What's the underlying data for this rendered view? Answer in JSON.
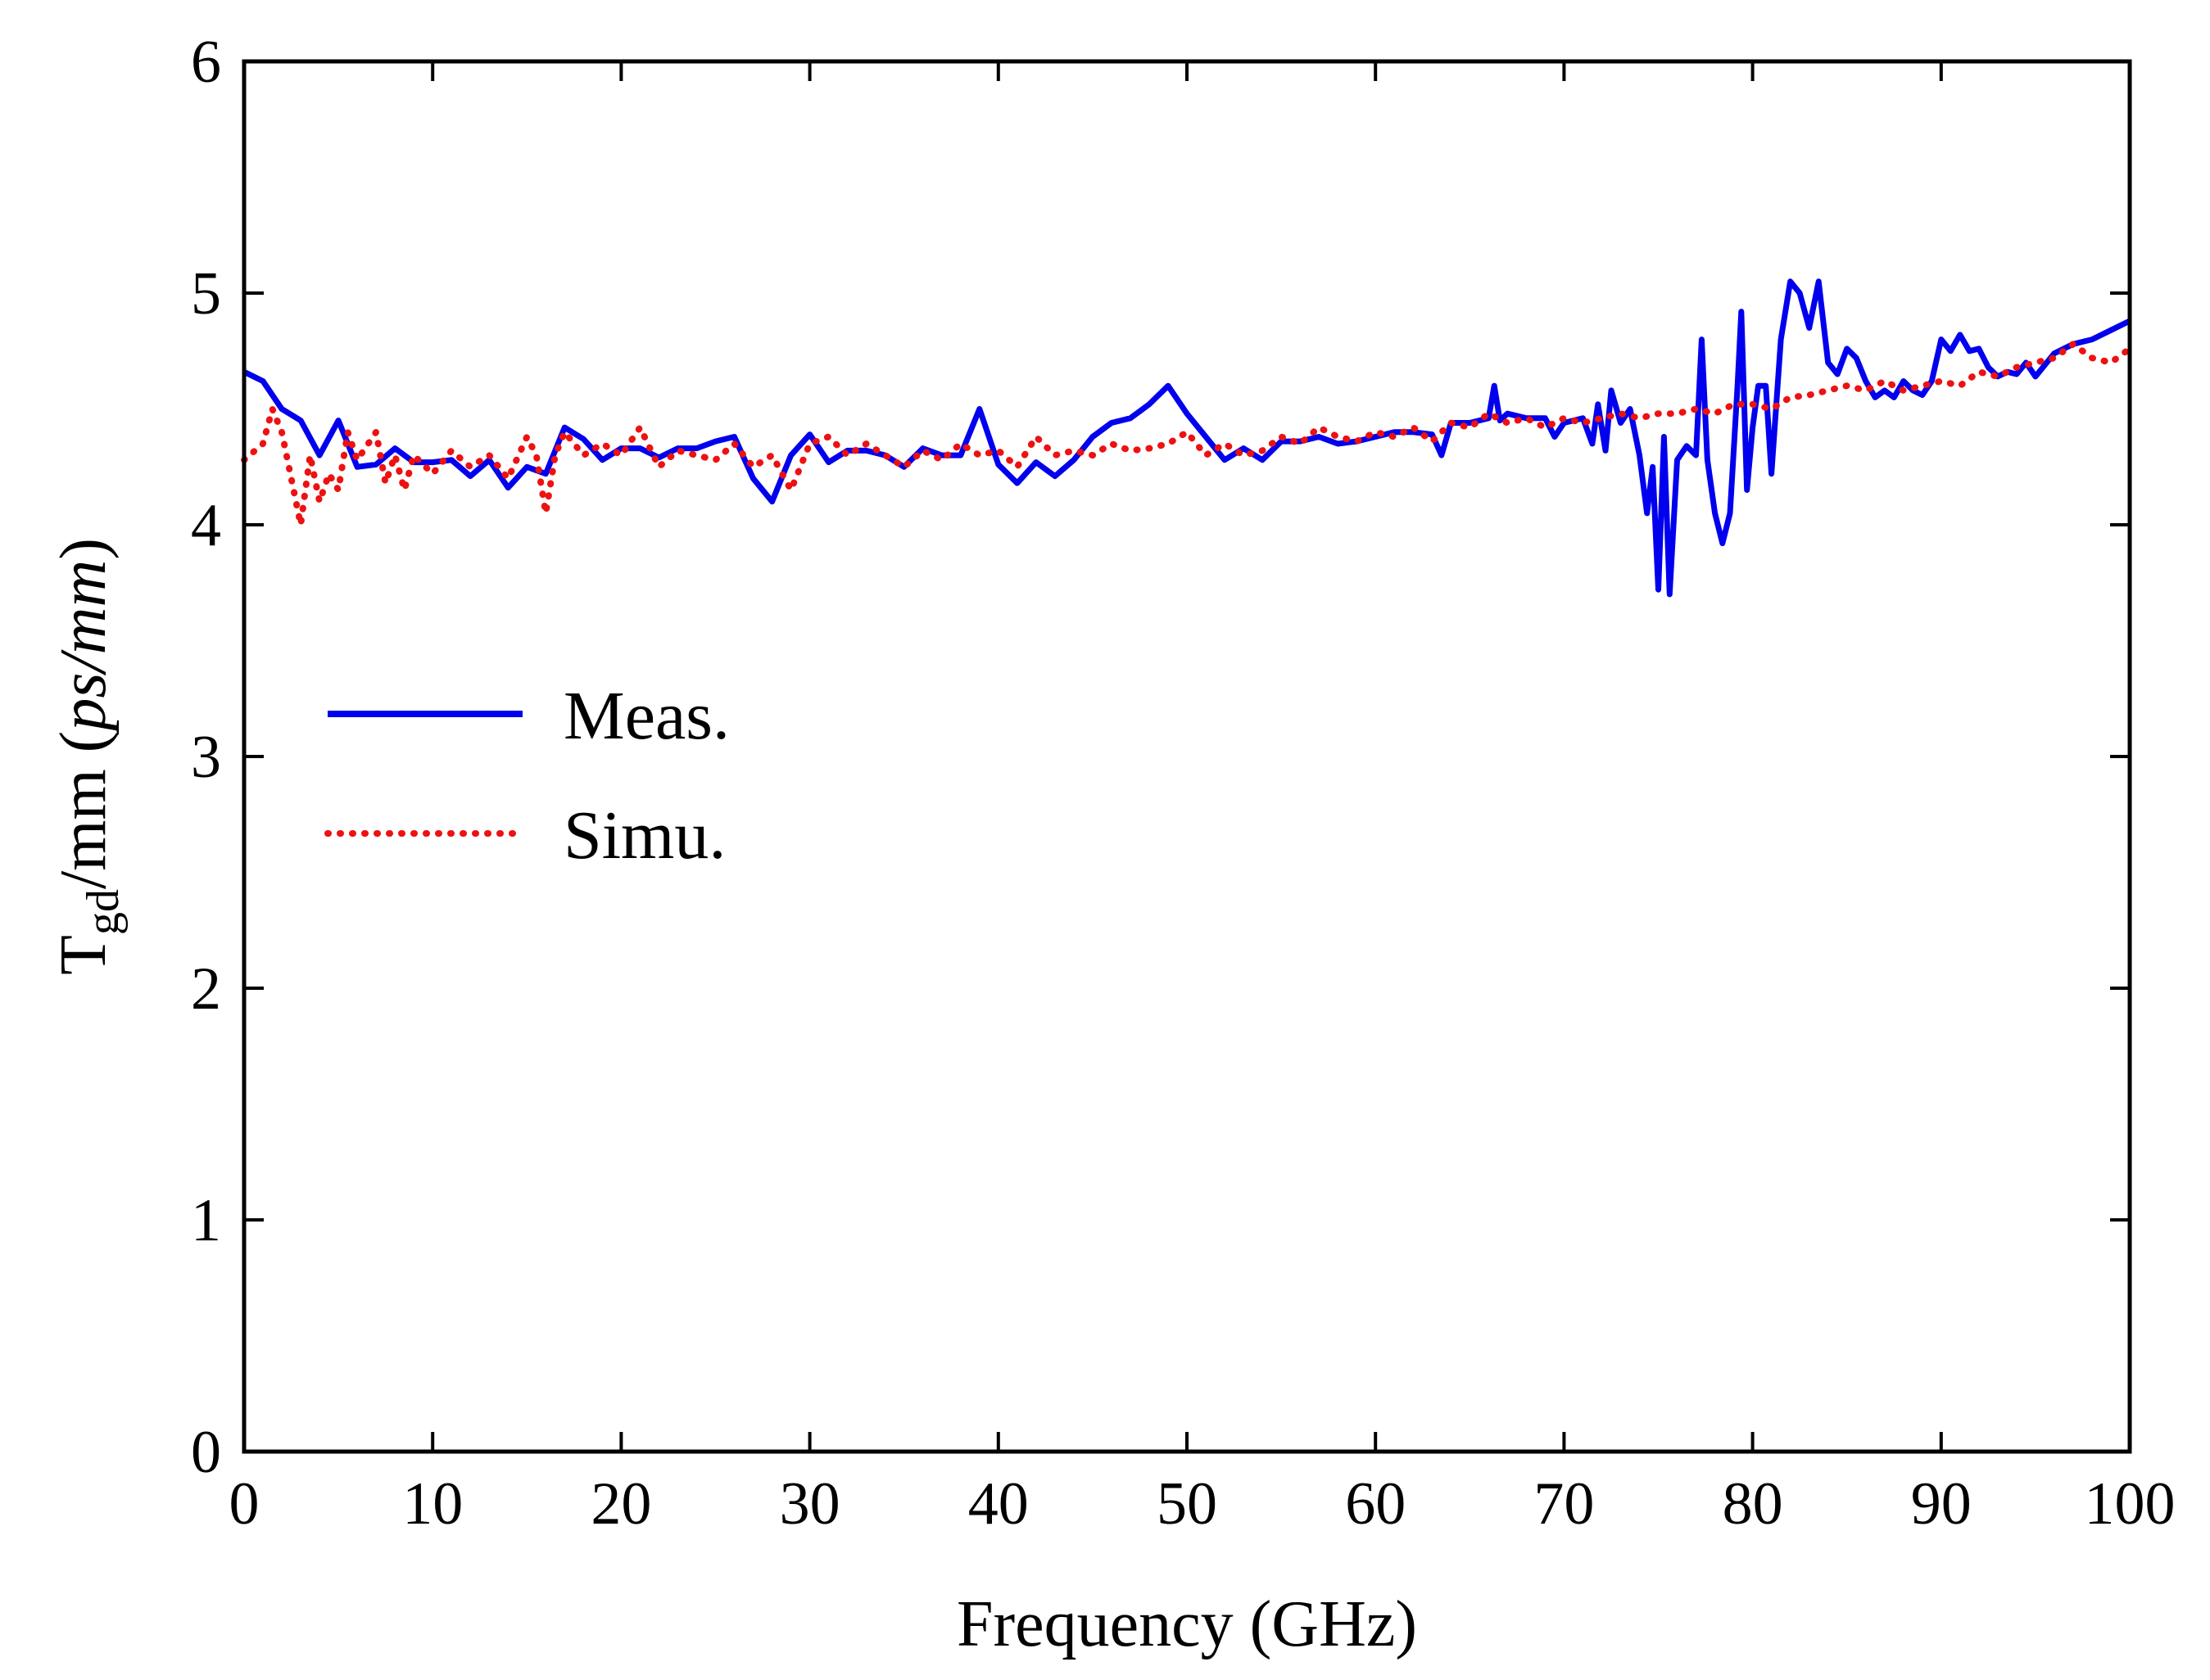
{
  "chart_data": {
    "type": "line",
    "title": "",
    "xlabel": "Frequency (GHz)",
    "ylabel": {
      "base": "T",
      "subscript": "gd",
      "middle": "/mm (",
      "italic": "ps/mm",
      "end": ")"
    },
    "xlim": [
      0,
      100
    ],
    "ylim": [
      0,
      6
    ],
    "xticks": [
      0,
      10,
      20,
      30,
      40,
      50,
      60,
      70,
      80,
      90,
      100
    ],
    "yticks": [
      0,
      1,
      2,
      3,
      4,
      5,
      6
    ],
    "grid": false,
    "legend_position": "center-left",
    "series": [
      {
        "name": "Meas.",
        "color": "#0000ee",
        "style": "solid",
        "points": [
          [
            0,
            4.66
          ],
          [
            1,
            4.62
          ],
          [
            2,
            4.5
          ],
          [
            3,
            4.45
          ],
          [
            4,
            4.3
          ],
          [
            5,
            4.45
          ],
          [
            6,
            4.25
          ],
          [
            7,
            4.26
          ],
          [
            8,
            4.33
          ],
          [
            9,
            4.27
          ],
          [
            10,
            4.27
          ],
          [
            11,
            4.28
          ],
          [
            12,
            4.21
          ],
          [
            13,
            4.28
          ],
          [
            14,
            4.16
          ],
          [
            15,
            4.25
          ],
          [
            16,
            4.22
          ],
          [
            17,
            4.42
          ],
          [
            18,
            4.37
          ],
          [
            19,
            4.28
          ],
          [
            20,
            4.33
          ],
          [
            21,
            4.33
          ],
          [
            22,
            4.29
          ],
          [
            23,
            4.33
          ],
          [
            24,
            4.33
          ],
          [
            25,
            4.36
          ],
          [
            26,
            4.38
          ],
          [
            27,
            4.2
          ],
          [
            28,
            4.1
          ],
          [
            29,
            4.3
          ],
          [
            30,
            4.39
          ],
          [
            31,
            4.27
          ],
          [
            32,
            4.32
          ],
          [
            33,
            4.32
          ],
          [
            34,
            4.3
          ],
          [
            35,
            4.25
          ],
          [
            36,
            4.33
          ],
          [
            37,
            4.3
          ],
          [
            38,
            4.3
          ],
          [
            39,
            4.5
          ],
          [
            40,
            4.26
          ],
          [
            41,
            4.18
          ],
          [
            42,
            4.27
          ],
          [
            43,
            4.21
          ],
          [
            44,
            4.28
          ],
          [
            45,
            4.38
          ],
          [
            46,
            4.44
          ],
          [
            47,
            4.46
          ],
          [
            48,
            4.52
          ],
          [
            49,
            4.6
          ],
          [
            50,
            4.48
          ],
          [
            51,
            4.38
          ],
          [
            52,
            4.28
          ],
          [
            53,
            4.33
          ],
          [
            54,
            4.28
          ],
          [
            55,
            4.36
          ],
          [
            56,
            4.36
          ],
          [
            57,
            4.38
          ],
          [
            58,
            4.35
          ],
          [
            59,
            4.36
          ],
          [
            60,
            4.38
          ],
          [
            61,
            4.4
          ],
          [
            62,
            4.4
          ],
          [
            63,
            4.39
          ],
          [
            63.5,
            4.3
          ],
          [
            64,
            4.44
          ],
          [
            65,
            4.44
          ],
          [
            66,
            4.46
          ],
          [
            66.3,
            4.6
          ],
          [
            66.6,
            4.45
          ],
          [
            67,
            4.48
          ],
          [
            68,
            4.46
          ],
          [
            69,
            4.46
          ],
          [
            69.5,
            4.38
          ],
          [
            70,
            4.44
          ],
          [
            71,
            4.46
          ],
          [
            71.5,
            4.35
          ],
          [
            71.8,
            4.52
          ],
          [
            72.2,
            4.32
          ],
          [
            72.5,
            4.58
          ],
          [
            73,
            4.44
          ],
          [
            73.5,
            4.5
          ],
          [
            74,
            4.3
          ],
          [
            74.4,
            4.05
          ],
          [
            74.7,
            4.25
          ],
          [
            75,
            3.72
          ],
          [
            75.3,
            4.38
          ],
          [
            75.6,
            3.7
          ],
          [
            76,
            4.28
          ],
          [
            76.5,
            4.34
          ],
          [
            77,
            4.3
          ],
          [
            77.3,
            4.8
          ],
          [
            77.6,
            4.28
          ],
          [
            78,
            4.05
          ],
          [
            78.4,
            3.92
          ],
          [
            78.8,
            4.05
          ],
          [
            79.2,
            4.6
          ],
          [
            79.4,
            4.92
          ],
          [
            79.7,
            4.15
          ],
          [
            80,
            4.42
          ],
          [
            80.3,
            4.6
          ],
          [
            80.7,
            4.6
          ],
          [
            81,
            4.22
          ],
          [
            81.5,
            4.8
          ],
          [
            82,
            5.05
          ],
          [
            82.5,
            5.0
          ],
          [
            83,
            4.85
          ],
          [
            83.5,
            5.05
          ],
          [
            84,
            4.7
          ],
          [
            84.5,
            4.65
          ],
          [
            85,
            4.76
          ],
          [
            85.5,
            4.72
          ],
          [
            86,
            4.62
          ],
          [
            86.5,
            4.55
          ],
          [
            87,
            4.58
          ],
          [
            87.5,
            4.55
          ],
          [
            88,
            4.62
          ],
          [
            88.5,
            4.58
          ],
          [
            89,
            4.56
          ],
          [
            89.5,
            4.62
          ],
          [
            90,
            4.8
          ],
          [
            90.5,
            4.75
          ],
          [
            91,
            4.82
          ],
          [
            91.5,
            4.75
          ],
          [
            92,
            4.76
          ],
          [
            92.5,
            4.68
          ],
          [
            93,
            4.64
          ],
          [
            93.5,
            4.66
          ],
          [
            94,
            4.65
          ],
          [
            94.5,
            4.7
          ],
          [
            95,
            4.64
          ],
          [
            96,
            4.74
          ],
          [
            97,
            4.78
          ],
          [
            98,
            4.8
          ],
          [
            99,
            4.84
          ],
          [
            100,
            4.88
          ]
        ]
      },
      {
        "name": "Simu.",
        "color": "#ee1111",
        "style": "dotted",
        "points": [
          [
            0,
            4.28
          ],
          [
            1,
            4.35
          ],
          [
            1.5,
            4.5
          ],
          [
            2,
            4.4
          ],
          [
            2.5,
            4.2
          ],
          [
            3,
            4.0
          ],
          [
            3.5,
            4.3
          ],
          [
            4,
            4.1
          ],
          [
            4.5,
            4.22
          ],
          [
            5,
            4.15
          ],
          [
            5.5,
            4.4
          ],
          [
            6,
            4.28
          ],
          [
            7,
            4.4
          ],
          [
            7.5,
            4.18
          ],
          [
            8,
            4.3
          ],
          [
            8.5,
            4.15
          ],
          [
            9,
            4.3
          ],
          [
            10,
            4.22
          ],
          [
            11,
            4.32
          ],
          [
            12,
            4.25
          ],
          [
            13,
            4.3
          ],
          [
            14,
            4.2
          ],
          [
            15,
            4.38
          ],
          [
            15.5,
            4.3
          ],
          [
            16,
            4.05
          ],
          [
            16.5,
            4.3
          ],
          [
            17,
            4.4
          ],
          [
            18,
            4.3
          ],
          [
            19,
            4.35
          ],
          [
            20,
            4.3
          ],
          [
            21,
            4.42
          ],
          [
            22,
            4.25
          ],
          [
            23,
            4.32
          ],
          [
            24,
            4.3
          ],
          [
            25,
            4.28
          ],
          [
            26,
            4.35
          ],
          [
            27,
            4.25
          ],
          [
            28,
            4.3
          ],
          [
            29,
            4.15
          ],
          [
            30,
            4.35
          ],
          [
            31,
            4.38
          ],
          [
            32,
            4.3
          ],
          [
            33,
            4.35
          ],
          [
            34,
            4.3
          ],
          [
            35,
            4.25
          ],
          [
            36,
            4.32
          ],
          [
            37,
            4.28
          ],
          [
            38,
            4.35
          ],
          [
            39,
            4.3
          ],
          [
            40,
            4.32
          ],
          [
            41,
            4.25
          ],
          [
            42,
            4.38
          ],
          [
            43,
            4.3
          ],
          [
            44,
            4.32
          ],
          [
            45,
            4.3
          ],
          [
            46,
            4.35
          ],
          [
            47,
            4.32
          ],
          [
            48,
            4.33
          ],
          [
            49,
            4.35
          ],
          [
            50,
            4.4
          ],
          [
            51,
            4.3
          ],
          [
            52,
            4.35
          ],
          [
            53,
            4.3
          ],
          [
            54,
            4.32
          ],
          [
            55,
            4.38
          ],
          [
            56,
            4.35
          ],
          [
            57,
            4.42
          ],
          [
            58,
            4.38
          ],
          [
            59,
            4.36
          ],
          [
            60,
            4.4
          ],
          [
            61,
            4.38
          ],
          [
            62,
            4.42
          ],
          [
            63,
            4.36
          ],
          [
            64,
            4.44
          ],
          [
            65,
            4.42
          ],
          [
            66,
            4.48
          ],
          [
            67,
            4.44
          ],
          [
            68,
            4.46
          ],
          [
            69,
            4.42
          ],
          [
            70,
            4.46
          ],
          [
            71,
            4.44
          ],
          [
            72,
            4.46
          ],
          [
            73,
            4.48
          ],
          [
            74,
            4.46
          ],
          [
            75,
            4.48
          ],
          [
            76,
            4.48
          ],
          [
            77,
            4.5
          ],
          [
            78,
            4.48
          ],
          [
            79,
            4.52
          ],
          [
            80,
            4.52
          ],
          [
            81,
            4.5
          ],
          [
            82,
            4.55
          ],
          [
            83,
            4.56
          ],
          [
            84,
            4.58
          ],
          [
            85,
            4.6
          ],
          [
            86,
            4.58
          ],
          [
            87,
            4.62
          ],
          [
            88,
            4.58
          ],
          [
            89,
            4.6
          ],
          [
            90,
            4.62
          ],
          [
            91,
            4.6
          ],
          [
            92,
            4.66
          ],
          [
            93,
            4.64
          ],
          [
            94,
            4.68
          ],
          [
            95,
            4.7
          ],
          [
            96,
            4.72
          ],
          [
            97,
            4.78
          ],
          [
            98,
            4.72
          ],
          [
            99,
            4.7
          ],
          [
            100,
            4.76
          ]
        ]
      }
    ]
  }
}
